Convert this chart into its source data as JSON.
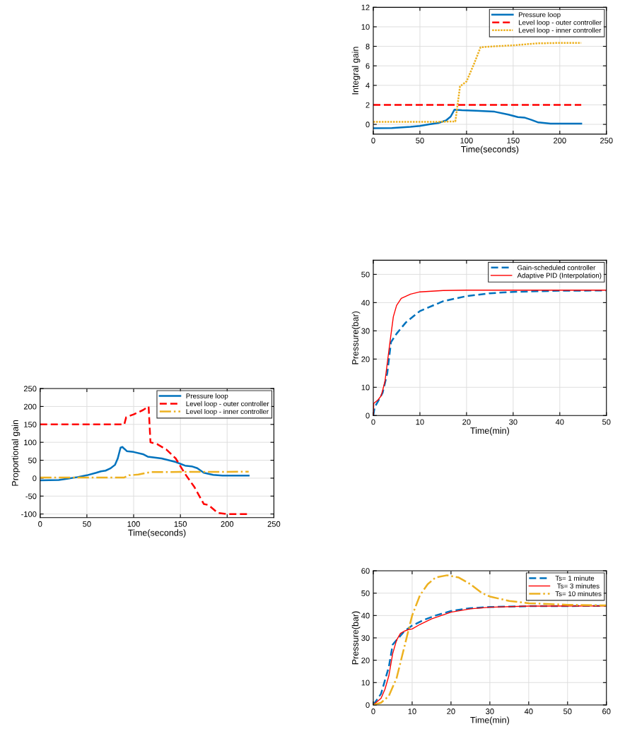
{
  "chart_data": [
    {
      "type": "line",
      "xlabel": "Time(seconds)",
      "ylabel": "Proportional gain",
      "xlim": [
        0,
        250
      ],
      "xticks": [
        0,
        50,
        100,
        150,
        200,
        250
      ],
      "ylim": [
        -110,
        250
      ],
      "yticks": [
        -100,
        -50,
        0,
        50,
        100,
        150,
        200,
        250
      ],
      "grid": true,
      "legend": "top right",
      "series": [
        {
          "name": "Pressure loop",
          "color": "#0072bd",
          "line_style": "solid",
          "x": [
            0,
            20,
            30,
            40,
            50,
            60,
            65,
            70,
            75,
            80,
            83,
            86,
            88,
            90,
            93,
            100,
            110,
            115,
            130,
            145,
            155,
            162,
            168,
            175,
            185,
            195,
            223
          ],
          "values": [
            -6,
            -5,
            -1,
            3,
            8,
            15,
            19,
            21,
            27,
            37,
            55,
            85,
            87,
            82,
            75,
            73,
            67,
            60,
            55,
            45,
            35,
            33,
            28,
            15,
            9,
            7,
            7
          ]
        },
        {
          "name": "Level loop - outer controller",
          "color": "#ff0000",
          "line_style": "dashed",
          "x": [
            0,
            90,
            92,
            100,
            110,
            116,
            118,
            125,
            135,
            145,
            155,
            165,
            175,
            180,
            190,
            200,
            223
          ],
          "values": [
            150,
            150,
            170,
            178,
            190,
            200,
            100,
            95,
            80,
            55,
            12,
            -25,
            -72,
            -75,
            -97,
            -100,
            -100
          ]
        },
        {
          "name": "Level loop - inner controller",
          "color": "#edb120",
          "line_style": "dashdot",
          "x": [
            0,
            90,
            95,
            105,
            118,
            223
          ],
          "values": [
            2,
            2,
            8,
            10,
            17,
            18
          ]
        }
      ]
    },
    {
      "type": "line",
      "xlabel": "Time(seconds)",
      "ylabel": "Integral gain",
      "xlim": [
        0,
        250
      ],
      "xticks": [
        0,
        50,
        100,
        150,
        200,
        250
      ],
      "ylim": [
        -1,
        12
      ],
      "yticks": [
        0,
        2,
        4,
        6,
        8,
        10,
        12
      ],
      "grid": true,
      "legend": "top right",
      "series": [
        {
          "name": "Pressure loop",
          "color": "#0072bd",
          "line_style": "solid",
          "x": [
            0,
            20,
            40,
            50,
            60,
            70,
            78,
            83,
            87,
            95,
            110,
            130,
            145,
            155,
            162,
            170,
            177,
            190,
            200,
            223
          ],
          "values": [
            -0.4,
            -0.38,
            -0.25,
            -0.15,
            0,
            0.15,
            0.4,
            0.8,
            1.5,
            1.45,
            1.4,
            1.3,
            1.0,
            0.75,
            0.7,
            0.45,
            0.2,
            0.08,
            0.07,
            0.07
          ]
        },
        {
          "name": "Level loop - outer controller",
          "color": "#ff0000",
          "line_style": "dashed",
          "x": [
            0,
            223
          ],
          "values": [
            2,
            2
          ]
        },
        {
          "name": "Level loop - inner controller",
          "color": "#edb120",
          "line_style": "dotted",
          "x": [
            0,
            60,
            88,
            93,
            100,
            108,
            115,
            130,
            150,
            175,
            200,
            223
          ],
          "values": [
            0.25,
            0.25,
            0.3,
            3.9,
            4.4,
            6.2,
            7.9,
            8.0,
            8.1,
            8.3,
            8.35,
            8.35
          ]
        }
      ]
    },
    {
      "type": "line",
      "xlabel": "Time(min)",
      "ylabel": "Pressure(bar)",
      "xlim": [
        0,
        50
      ],
      "xticks": [
        0,
        10,
        20,
        30,
        40,
        50
      ],
      "ylim": [
        0,
        55
      ],
      "yticks": [
        0,
        10,
        20,
        30,
        40,
        50
      ],
      "grid": true,
      "legend": "top right",
      "series": [
        {
          "name": "Gain-scheduled controller",
          "color": "#0072bd",
          "line_style": "dashed",
          "x": [
            0,
            0.3,
            1,
            2,
            3,
            3.8,
            5,
            7,
            10,
            15,
            20,
            25,
            30,
            40,
            50
          ],
          "values": [
            0,
            3,
            5,
            8,
            15,
            26,
            29,
            33,
            37,
            40.5,
            42.3,
            43.3,
            43.8,
            44.2,
            44.3
          ]
        },
        {
          "name": "Adaptive PID (Interpolation)",
          "color": "#ff0000",
          "line_style": "solid",
          "x": [
            0,
            0.1,
            1,
            1.7,
            2.5,
            3.5,
            4.3,
            5,
            6,
            8,
            10,
            15,
            20,
            50
          ],
          "values": [
            0,
            4.3,
            5.5,
            7,
            12,
            25,
            35,
            39,
            41.5,
            43,
            43.8,
            44.3,
            44.4,
            44.4
          ]
        }
      ]
    },
    {
      "type": "line",
      "xlabel": "Time(min)",
      "ylabel": "Pressure(bar)",
      "xlim": [
        0,
        60
      ],
      "xticks": [
        0,
        10,
        20,
        30,
        40,
        50,
        60
      ],
      "ylim": [
        0,
        60
      ],
      "yticks": [
        0,
        10,
        20,
        30,
        40,
        50,
        60
      ],
      "grid": true,
      "legend": "top right",
      "series": [
        {
          "name": "Ts= 1 minute",
          "color": "#0072bd",
          "line_style": "dashed",
          "x": [
            0,
            2,
            4,
            5,
            6,
            7,
            8,
            10,
            13,
            16,
            20,
            25,
            30,
            40,
            60
          ],
          "values": [
            0,
            5,
            17,
            27,
            29,
            31,
            33,
            35.5,
            38,
            40,
            42,
            43.3,
            43.8,
            44.2,
            44.3
          ]
        },
        {
          "name": " Ts= 3 minutes",
          "color": "#ff0000",
          "line_style": "solid",
          "x": [
            0,
            2,
            3,
            4,
            5,
            6,
            7,
            8,
            9,
            10,
            12,
            15,
            20,
            25,
            30,
            40,
            60
          ],
          "values": [
            0,
            3,
            7,
            13,
            23,
            29,
            32,
            33,
            33.7,
            34,
            36,
            38.5,
            41.5,
            43,
            43.7,
            44.2,
            44.3
          ]
        },
        {
          "name": "Ts= 10 minutes",
          "color": "#edb120",
          "line_style": "dashdot",
          "x": [
            0,
            2,
            4,
            6,
            8,
            10,
            12,
            14,
            16,
            19,
            22,
            25,
            28,
            30,
            35,
            40,
            50,
            60
          ],
          "values": [
            0,
            1,
            4,
            12,
            26,
            40,
            49,
            54,
            57,
            58,
            57,
            54,
            50,
            48.5,
            46.5,
            45.5,
            44.8,
            44.5
          ]
        }
      ]
    }
  ]
}
